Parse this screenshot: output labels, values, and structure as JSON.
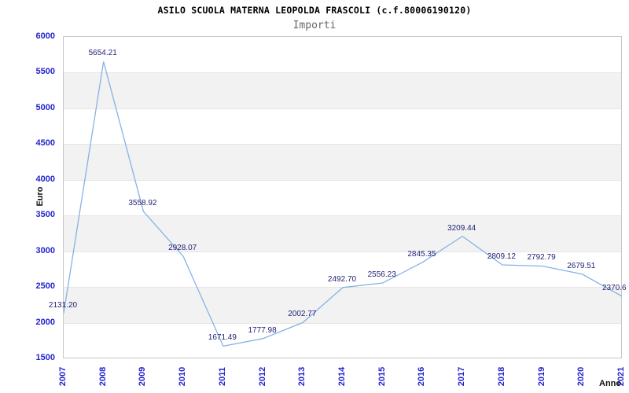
{
  "title": "ASILO SCUOLA MATERNA LEOPOLDA FRASCOLI (c.f.80006190120)",
  "subtitle": "Importi",
  "chart_data": {
    "type": "line",
    "title": "ASILO SCUOLA MATERNA LEOPOLDA FRASCOLI (c.f.80006190120)",
    "subtitle": "Importi",
    "xlabel": "Anno",
    "ylabel": "Euro",
    "x": [
      2007,
      2008,
      2009,
      2010,
      2011,
      2012,
      2013,
      2014,
      2015,
      2016,
      2017,
      2018,
      2019,
      2020,
      2021
    ],
    "values": [
      2131.2,
      5654.21,
      3558.92,
      2928.07,
      1671.49,
      1777.98,
      2002.77,
      2492.7,
      2556.23,
      2845.35,
      3209.44,
      2809.12,
      2792.79,
      2679.51,
      2370.6
    ],
    "point_labels": [
      "2131.20",
      "5654.21",
      "3558.92",
      "2928.07",
      "1671.49",
      "1777.98",
      "2002.77",
      "2492.70",
      "2556.23",
      "2845.35",
      "3209.44",
      "2809.12",
      "2792.79",
      "2679.51",
      "2370.6"
    ],
    "ylim": [
      1500,
      6000
    ],
    "ytick_step": 500,
    "yticks": [
      1500,
      2000,
      2500,
      3000,
      3500,
      4000,
      4500,
      5000,
      5500,
      6000
    ],
    "grid": "horizontal",
    "legend_position": "none",
    "colors": {
      "line": "#86b2e6",
      "point_label": "#232377",
      "tick_label": "#2424cf",
      "band": "#f2f2f2",
      "gridline": "#e6e6e6",
      "plot_border": "#c6c6c6",
      "title": "#000000",
      "subtitle": "#666666"
    }
  }
}
